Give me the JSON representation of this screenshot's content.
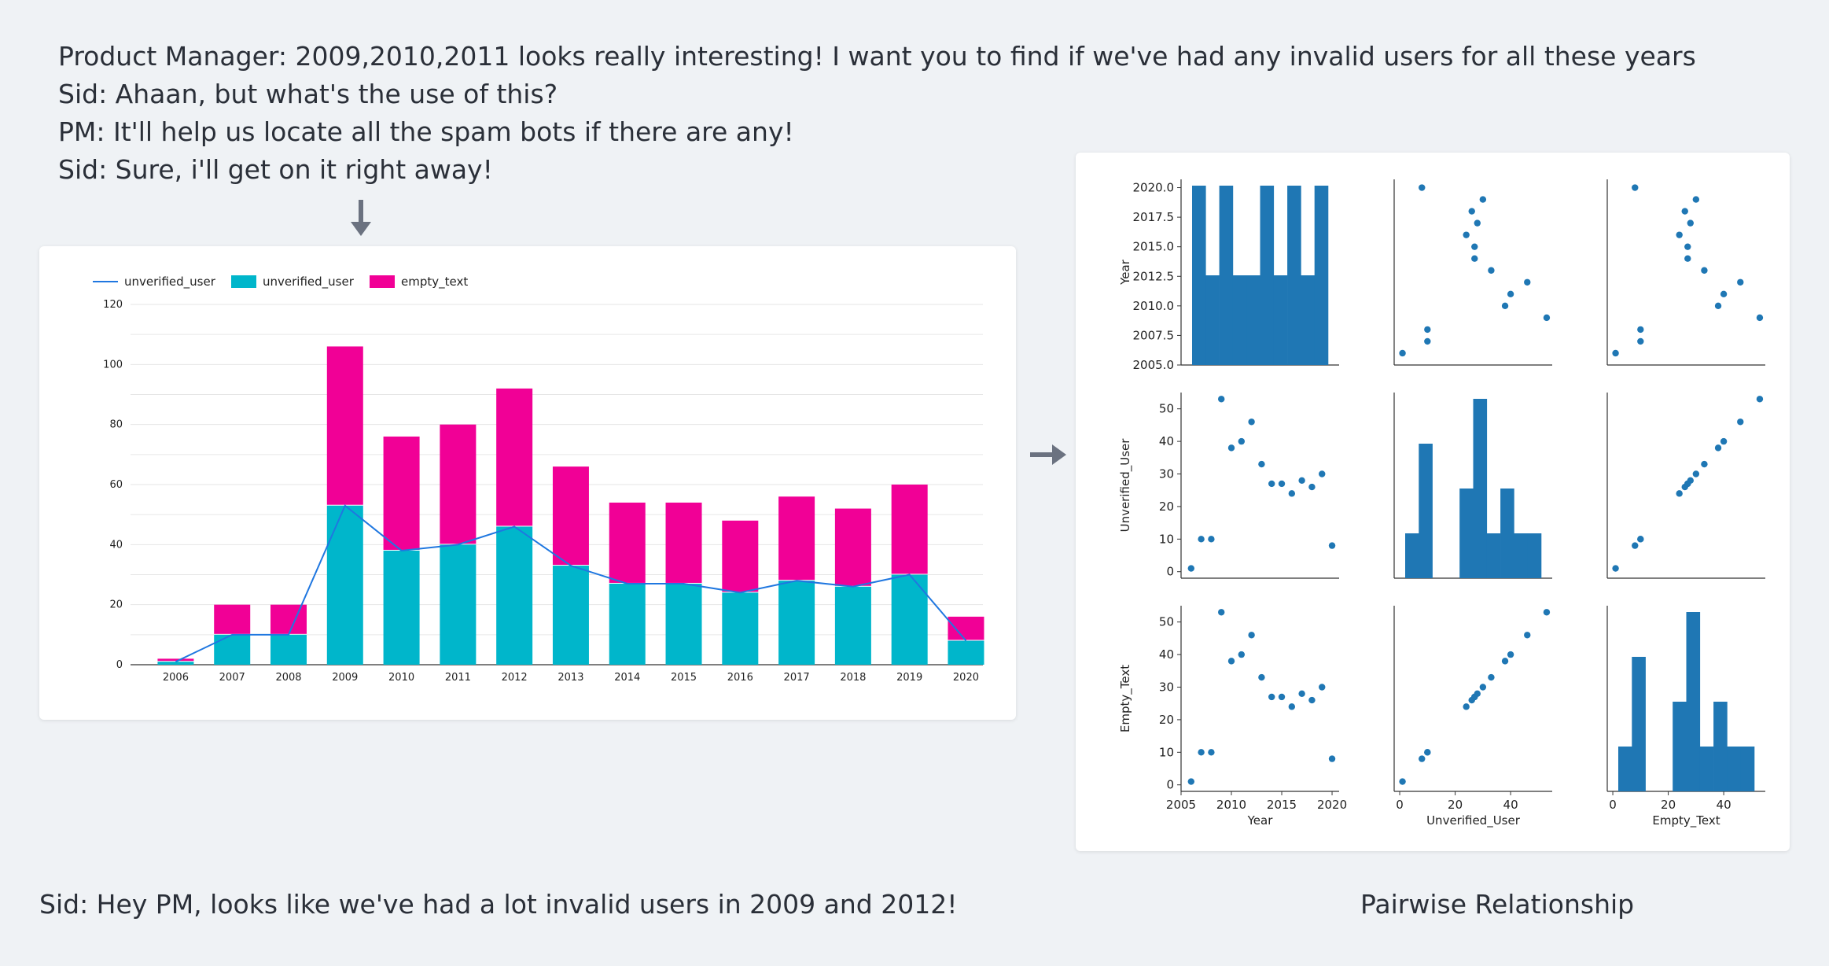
{
  "dialogue": [
    "Product Manager: 2009,2010,2011 looks really interesting! I want you to find if we've had any invalid users for all these years",
    "Sid: Ahaan, but what's the use of this?",
    "PM: It'll help us locate all the spam bots if there are any!",
    "Sid: Sure, i'll get on it right away!"
  ],
  "footer_note": "Sid: Hey PM, looks like we've had a lot invalid users in 2009 and 2012!",
  "pairwise_title": "Pairwise Relationship",
  "arrows": [
    "down-arrow-icon",
    "right-arrow-icon"
  ],
  "colors": {
    "unverified_bar": "#00b6cb",
    "empty_text_bar": "#f10096",
    "line": "#1f77e0",
    "pair_points": "#1f77b4",
    "arrow": "#6b7280"
  },
  "chart_data": [
    {
      "type": "bar",
      "stacked": true,
      "title": "",
      "xlabel": "",
      "ylabel": "",
      "categories": [
        "2006",
        "2007",
        "2008",
        "2009",
        "2010",
        "2011",
        "2012",
        "2013",
        "2014",
        "2015",
        "2016",
        "2017",
        "2018",
        "2019",
        "2020"
      ],
      "series": [
        {
          "name": "unverified_user",
          "kind": "line",
          "values": [
            1,
            10,
            10,
            53,
            38,
            40,
            46,
            33,
            27,
            27,
            24,
            28,
            26,
            30,
            8
          ]
        },
        {
          "name": "unverified_user",
          "kind": "bar",
          "values": [
            1,
            10,
            10,
            53,
            38,
            40,
            46,
            33,
            27,
            27,
            24,
            28,
            26,
            30,
            8
          ]
        },
        {
          "name": "empty_text",
          "kind": "bar",
          "values": [
            1,
            10,
            10,
            53,
            38,
            40,
            46,
            33,
            27,
            27,
            24,
            28,
            26,
            30,
            8
          ]
        }
      ],
      "ylim": [
        0,
        120
      ],
      "yticks": [
        0,
        20,
        40,
        60,
        80,
        100,
        120
      ],
      "grid": true,
      "legend": "top-left"
    },
    {
      "type": "scatter",
      "subtype": "pairplot",
      "variables": [
        "Year",
        "Unverified_User",
        "Empty_Text"
      ],
      "rows": [
        {
          "Year": 2006,
          "Unverified_User": 1,
          "Empty_Text": 1
        },
        {
          "Year": 2007,
          "Unverified_User": 10,
          "Empty_Text": 10
        },
        {
          "Year": 2008,
          "Unverified_User": 10,
          "Empty_Text": 10
        },
        {
          "Year": 2009,
          "Unverified_User": 53,
          "Empty_Text": 53
        },
        {
          "Year": 2010,
          "Unverified_User": 38,
          "Empty_Text": 38
        },
        {
          "Year": 2011,
          "Unverified_User": 40,
          "Empty_Text": 40
        },
        {
          "Year": 2012,
          "Unverified_User": 46,
          "Empty_Text": 46
        },
        {
          "Year": 2013,
          "Unverified_User": 33,
          "Empty_Text": 33
        },
        {
          "Year": 2014,
          "Unverified_User": 27,
          "Empty_Text": 27
        },
        {
          "Year": 2015,
          "Unverified_User": 27,
          "Empty_Text": 27
        },
        {
          "Year": 2016,
          "Unverified_User": 24,
          "Empty_Text": 24
        },
        {
          "Year": 2017,
          "Unverified_User": 28,
          "Empty_Text": 28
        },
        {
          "Year": 2018,
          "Unverified_User": 26,
          "Empty_Text": 26
        },
        {
          "Year": 2019,
          "Unverified_User": 30,
          "Empty_Text": 30
        },
        {
          "Year": 2020,
          "Unverified_User": 8,
          "Empty_Text": 8
        }
      ],
      "axes": {
        "Year": {
          "label": "Year",
          "lim": [
            2005,
            2020.7
          ],
          "ticks": [
            2005,
            2010,
            2015,
            2020
          ],
          "diag_ticks": [
            "2005.0",
            "2007.5",
            "2010.0",
            "2012.5",
            "2015.0",
            "2017.5",
            "2020.0"
          ]
        },
        "Unverified_User": {
          "label": "Unverified_User",
          "lim": [
            -2,
            55
          ],
          "ticks": [
            0,
            10,
            20,
            30,
            40,
            50
          ],
          "xticks": [
            0,
            20,
            40
          ]
        },
        "Empty_Text": {
          "label": "Empty_Text",
          "lim": [
            -2,
            55
          ],
          "ticks": [
            0,
            10,
            20,
            30,
            40,
            50
          ],
          "xticks": [
            0,
            20,
            40
          ]
        }
      }
    }
  ]
}
